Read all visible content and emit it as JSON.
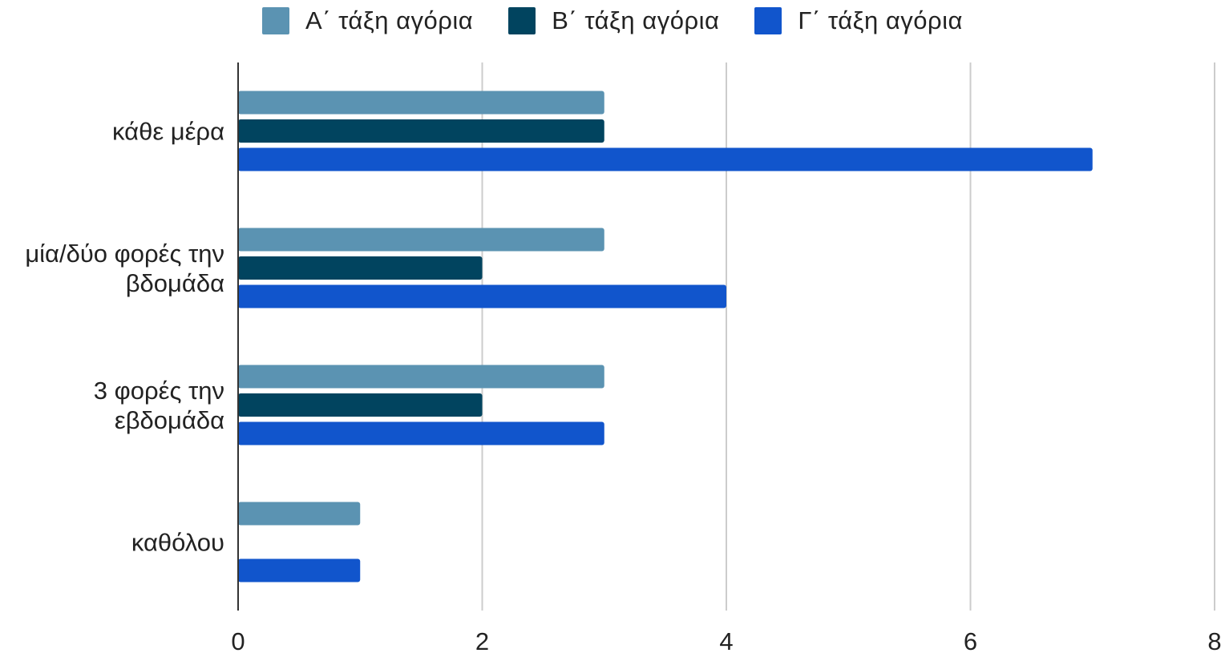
{
  "chart_data": {
    "type": "bar",
    "orientation": "horizontal",
    "categories": [
      [
        "κάθε μέρα"
      ],
      [
        "μία/δύο φορές την",
        "βδομάδα"
      ],
      [
        "3 φορές την",
        "εβδομάδα"
      ],
      [
        "καθόλου"
      ]
    ],
    "series": [
      {
        "name": "Α΄ τάξη αγόρια",
        "values": [
          3,
          3,
          3,
          1
        ],
        "color": "#5b93b2"
      },
      {
        "name": "Β΄ τάξη αγόρια",
        "values": [
          3,
          2,
          2,
          0
        ],
        "color": "#01445f"
      },
      {
        "name": "Γ΄ τάξη αγόρια",
        "values": [
          7,
          4,
          3,
          1
        ],
        "color": "#1155cc"
      }
    ],
    "xlim": [
      0,
      8
    ],
    "xticks": [
      "0",
      "2",
      "4",
      "6",
      "8"
    ],
    "grid": true,
    "legend_position": "top"
  }
}
